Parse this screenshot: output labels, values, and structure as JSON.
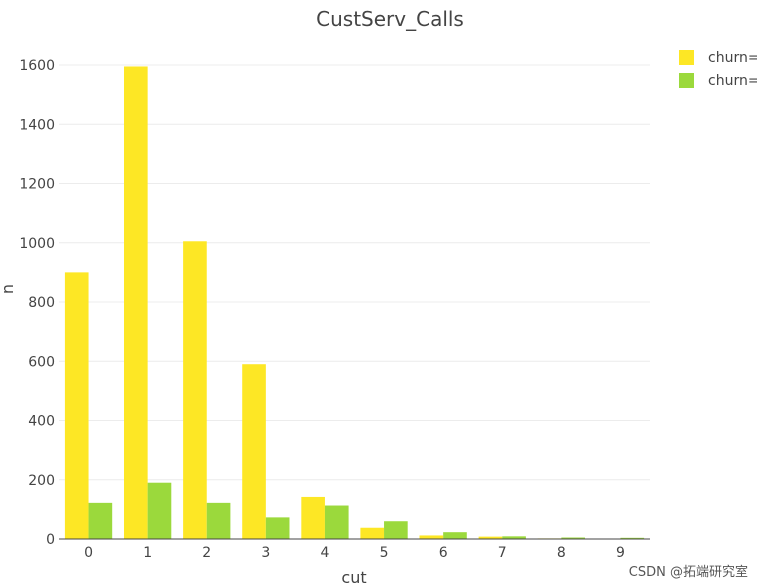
{
  "chart_data": {
    "type": "bar",
    "title": "CustServ_Calls",
    "xlabel": "cut",
    "ylabel": "n",
    "categories": [
      "0",
      "1",
      "2",
      "3",
      "4",
      "5",
      "6",
      "7",
      "8",
      "9"
    ],
    "yticks": [
      0,
      200,
      400,
      600,
      800,
      1000,
      1200,
      1400,
      1600
    ],
    "ylim": [
      0,
      1600
    ],
    "grid": true,
    "legend_position": "top-right",
    "series": [
      {
        "name": "churn=",
        "color": "#FDE725",
        "values": [
          900,
          1595,
          1005,
          590,
          142,
          38,
          12,
          8,
          2,
          0
        ]
      },
      {
        "name": "churn=",
        "color": "#9BD93C",
        "values": [
          122,
          190,
          122,
          73,
          113,
          60,
          23,
          9,
          5,
          4
        ]
      }
    ]
  },
  "watermark": "CSDN @拓端研究室"
}
